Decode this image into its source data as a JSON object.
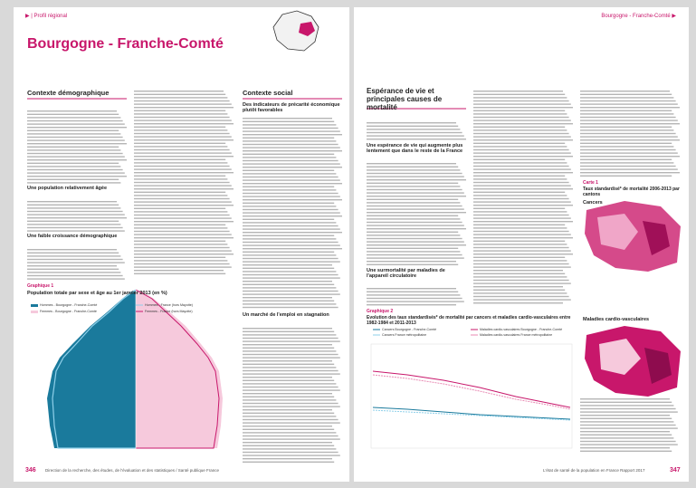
{
  "left": {
    "section": "▶ | Profil régional",
    "title": "Bourgogne - Franche-Comté",
    "col1_heading": "Contexte démographique",
    "col1_sub1": "Une population relativement âgée",
    "col1_sub2": "Une faible croissance démographique",
    "col3_heading": "Contexte social",
    "col3_sub1": "Des indicateurs de précarité économique plutôt favorables",
    "col3_sub2": "Un marché de l'emploi en stagnation",
    "figure_label": "Graphique 1",
    "figure_title": "Population totale par sexe et âge au 1er janvier 2013 (en %)",
    "legend": [
      "Hommes - Bourgogne - Franche-Comté",
      "Femmes - Bourgogne - Franche-Comté",
      "Hommes - France (hors Mayotte)",
      "Femmes - France (hors Mayotte)"
    ],
    "page_number": "346",
    "footer": "Direction de la recherche, des études, de l'évaluation et des statistiques / Santé publique France"
  },
  "right": {
    "section": "Bourgogne - Franche-Comté ▶",
    "heading": "Espérance de vie et principales causes de mortalité",
    "sub1": "Une espérance de vie qui augmente plus lentement que dans le reste de la France",
    "sub2": "Une surmortalité par maladies de l'appareil circulatoire",
    "figure_label": "Graphique 2",
    "figure_title": "Evolution des taux standardisés* de mortalité par cancers et maladies cardio-vasculaires entre 1982-1984 et 2011-2013",
    "legend": [
      "Cancers Bourgogne - Franche-Comté",
      "Cancers France métropolitaine",
      "Maladies cardio-vasculaires Bourgogne - Franche-Comté",
      "Maladies cardio-vasculaires France métropolitaine"
    ],
    "map_label": "Carte 1",
    "map_title": "Taux standardisé* de mortalité 2006-2013 par cantons",
    "map1": "Cancers",
    "map2": "Maladies cardio-vasculaires",
    "footer": "L'état de santé de la population en France Rapport 2017",
    "page_number": "347"
  }
}
